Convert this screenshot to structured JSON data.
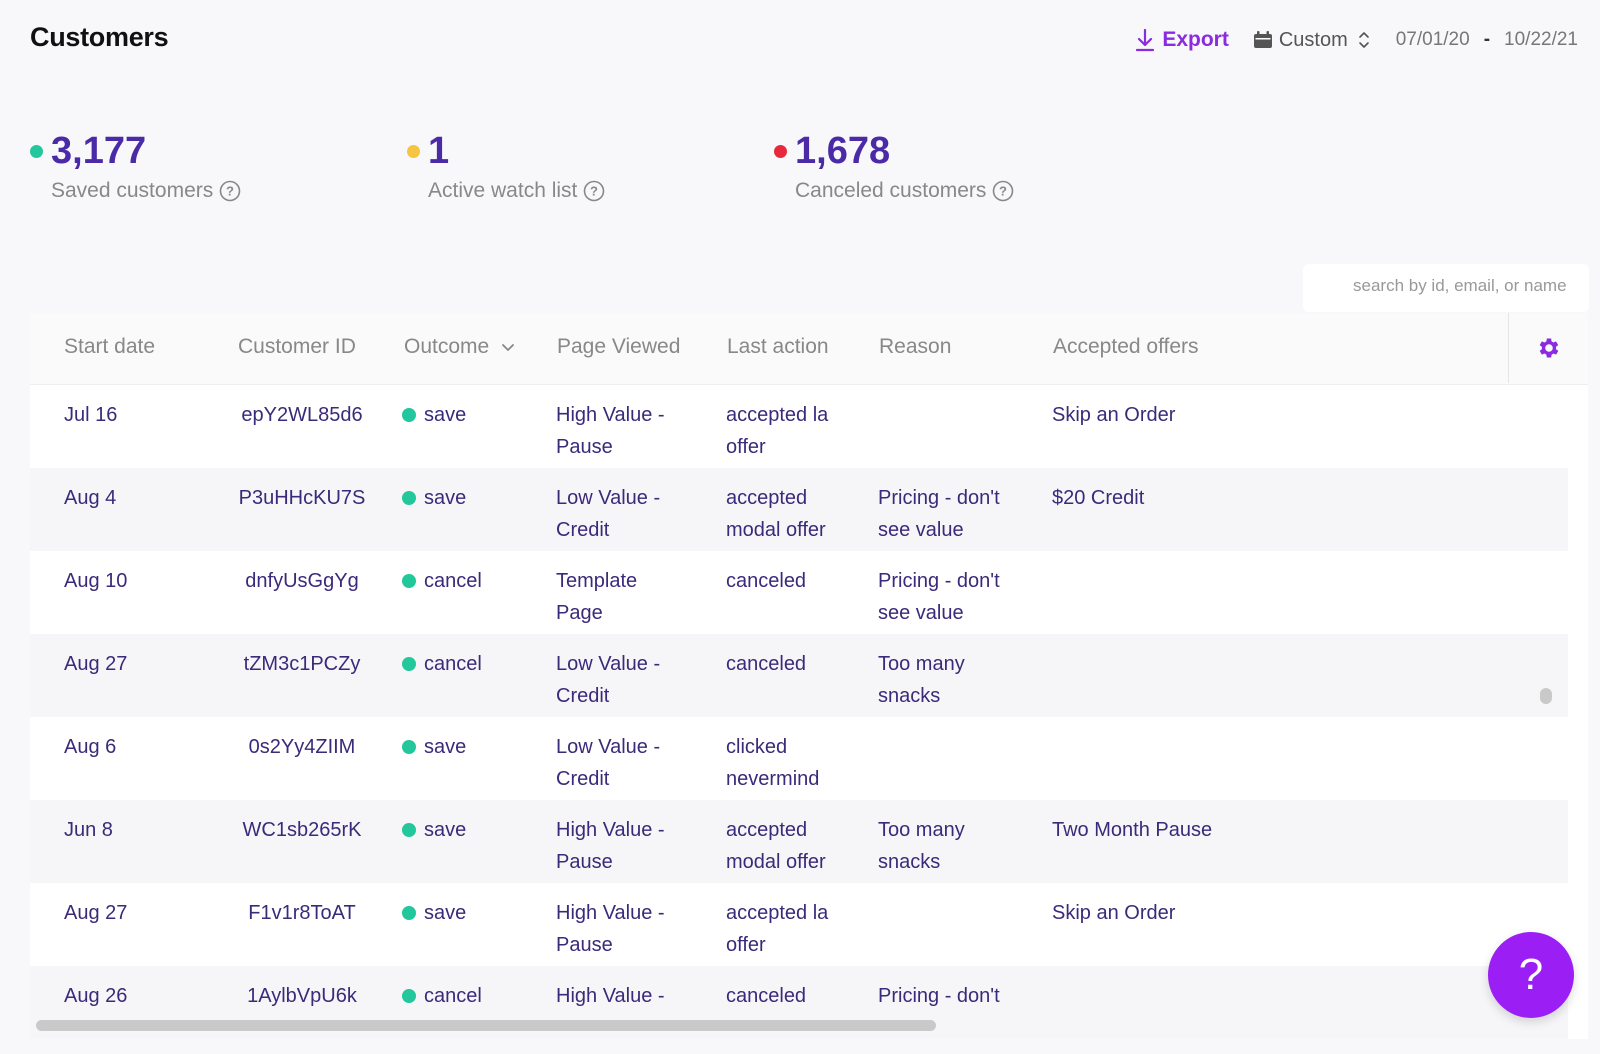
{
  "header": {
    "title": "Customers",
    "export_label": "Export",
    "range_label": "Custom",
    "date_start": "07/01/20",
    "date_sep": "-",
    "date_end": "10/22/21"
  },
  "stats": [
    {
      "value": "3,177",
      "label": "Saved customers",
      "color": "#22c79b"
    },
    {
      "value": "1",
      "label": "Active watch list",
      "color": "#f5c542"
    },
    {
      "value": "1,678",
      "label": "Canceled customers",
      "color": "#e8283b"
    }
  ],
  "search": {
    "placeholder": "search by id, email, or name"
  },
  "table": {
    "columns": [
      "Start date",
      "Customer ID",
      "Outcome",
      "Page Viewed",
      "Last action",
      "Reason",
      "Accepted offers"
    ],
    "rows": [
      {
        "start": "Jul 16",
        "id": "epY2WL85d6",
        "outcome": "save",
        "page1": "High Value -",
        "page2": "Pause",
        "action1": "accepted la",
        "action2": "offer",
        "reason1": "",
        "reason2": "",
        "offer": "Skip an Order"
      },
      {
        "start": "Aug 4",
        "id": "P3uHHcKU7S",
        "outcome": "save",
        "page1": "Low Value -",
        "page2": "Credit",
        "action1": "accepted",
        "action2": "modal offer",
        "reason1": "Pricing - don't",
        "reason2": "see value",
        "offer": "$20 Credit"
      },
      {
        "start": "Aug 10",
        "id": "dnfyUsGgYg",
        "outcome": "cancel",
        "page1": "Template",
        "page2": "Page",
        "action1": "canceled",
        "action2": "",
        "reason1": "Pricing - don't",
        "reason2": "see value",
        "offer": ""
      },
      {
        "start": "Aug 27",
        "id": "tZM3c1PCZy",
        "outcome": "cancel",
        "page1": "Low Value -",
        "page2": "Credit",
        "action1": "canceled",
        "action2": "",
        "reason1": "Too many",
        "reason2": "snacks",
        "offer": ""
      },
      {
        "start": "Aug 6",
        "id": "0s2Yy4ZIIM",
        "outcome": "save",
        "page1": "Low Value -",
        "page2": "Credit",
        "action1": "clicked",
        "action2": "nevermind",
        "reason1": "",
        "reason2": "",
        "offer": ""
      },
      {
        "start": "Jun 8",
        "id": "WC1sb265rK",
        "outcome": "save",
        "page1": "High Value -",
        "page2": "Pause",
        "action1": "accepted",
        "action2": "modal offer",
        "reason1": "Too many",
        "reason2": "snacks",
        "offer": "Two Month Pause"
      },
      {
        "start": "Aug 27",
        "id": "F1v1r8ToAT",
        "outcome": "save",
        "page1": "High Value -",
        "page2": "Pause",
        "action1": "accepted la",
        "action2": "offer",
        "reason1": "",
        "reason2": "",
        "offer": "Skip an Order"
      },
      {
        "start": "Aug 26",
        "id": "1AylbVpU6k",
        "outcome": "cancel",
        "page1": "High Value -",
        "page2": "",
        "action1": "canceled",
        "action2": "",
        "reason1": "Pricing - don't",
        "reason2": "",
        "offer": ""
      }
    ]
  },
  "help": {
    "label": "?"
  },
  "colors": {
    "accent": "#8a2be2",
    "outcome_dot": "#22c79b",
    "text": "#3b2a7a"
  }
}
